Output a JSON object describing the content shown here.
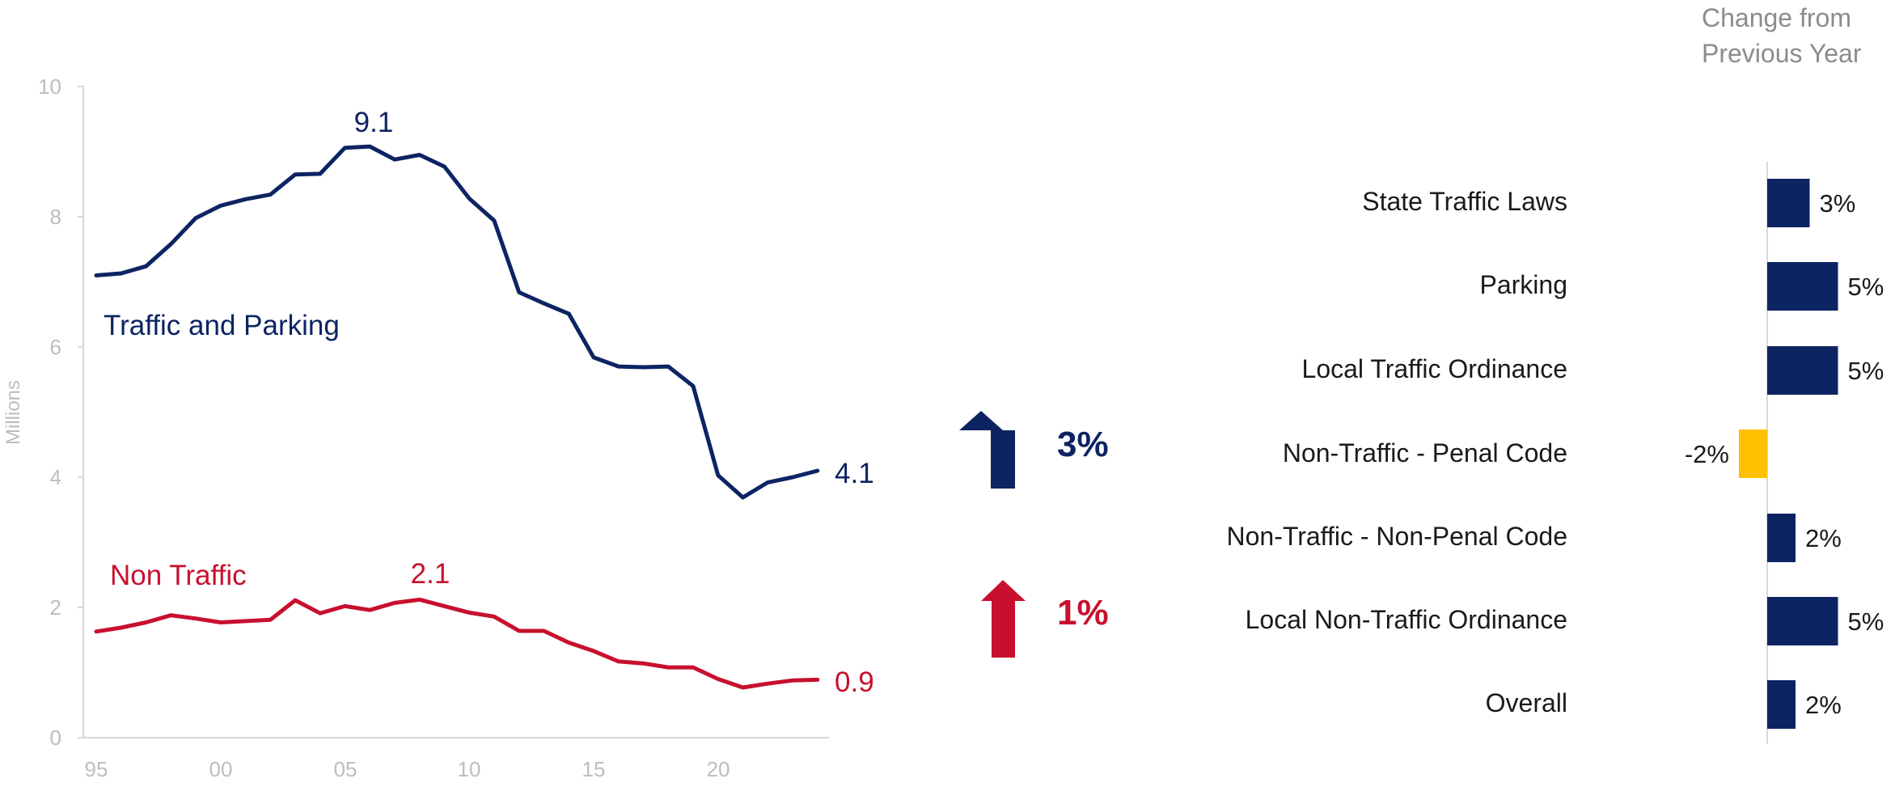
{
  "colors": {
    "navy": "#0d2463",
    "red": "#c8102e",
    "gold": "#ffc000",
    "axis": "#d9d9d9",
    "tick": "#bdbdbd"
  },
  "line_chart": {
    "ylabel": "Millions",
    "series_labels": {
      "traffic": "Traffic and Parking",
      "nontraffic": "Non Traffic"
    },
    "peak_labels": {
      "traffic": "9.1",
      "nontraffic": "2.1"
    },
    "end_labels": {
      "traffic": "4.1",
      "nontraffic": "0.9"
    },
    "yticks": [
      "0",
      "2",
      "4",
      "6",
      "8",
      "10"
    ],
    "xticks": [
      "95",
      "00",
      "05",
      "10",
      "15",
      "20"
    ]
  },
  "arrows": [
    {
      "direction": "up-arrow",
      "label": "3%",
      "color": "#0d2463"
    },
    {
      "direction": "up-arrow",
      "label": "1%",
      "color": "#c8102e"
    }
  ],
  "bar_chart": {
    "header_line1": "Change from",
    "header_line2": "Previous Year",
    "rows": [
      {
        "category": "State Traffic Laws",
        "value": 3,
        "label": "3%"
      },
      {
        "category": "Parking",
        "value": 5,
        "label": "5%"
      },
      {
        "category": "Local Traffic Ordinance",
        "value": 5,
        "label": "5%"
      },
      {
        "category": "Non-Traffic - Penal Code",
        "value": -2,
        "label": "-2%"
      },
      {
        "category": "Non-Traffic - Non-Penal Code",
        "value": 2,
        "label": "2%"
      },
      {
        "category": "Local Non-Traffic Ordinance",
        "value": 5,
        "label": "5%"
      },
      {
        "category": "Overall",
        "value": 2,
        "label": "2%"
      }
    ]
  },
  "chart_data": [
    {
      "type": "line",
      "title": "",
      "xlabel": "",
      "ylabel": "Millions",
      "ylim": [
        0,
        10
      ],
      "xlim": [
        1995,
        2025
      ],
      "grid": false,
      "x": [
        1995,
        1996,
        1997,
        1998,
        1999,
        2000,
        2001,
        2002,
        2003,
        2004,
        2005,
        2006,
        2007,
        2008,
        2009,
        2010,
        2011,
        2012,
        2013,
        2014,
        2015,
        2016,
        2017,
        2018,
        2019,
        2020,
        2021,
        2022,
        2023,
        2024
      ],
      "series": [
        {
          "name": "Traffic and Parking",
          "color": "#0d2463",
          "values": [
            7.1,
            7.13,
            7.24,
            7.58,
            7.98,
            8.17,
            8.27,
            8.34,
            8.65,
            8.66,
            9.06,
            9.08,
            8.88,
            8.95,
            8.77,
            8.28,
            7.94,
            6.84,
            6.67,
            6.51,
            5.84,
            5.7,
            5.69,
            5.7,
            5.4,
            4.03,
            3.69,
            3.92,
            4.0,
            4.1
          ]
        },
        {
          "name": "Non Traffic",
          "color": "#c8102e",
          "values": [
            1.63,
            1.69,
            1.77,
            1.88,
            1.83,
            1.77,
            1.79,
            1.81,
            2.11,
            1.91,
            2.02,
            1.96,
            2.07,
            2.12,
            2.02,
            1.92,
            1.86,
            1.64,
            1.64,
            1.46,
            1.33,
            1.17,
            1.14,
            1.08,
            1.08,
            0.9,
            0.77,
            0.83,
            0.88,
            0.89
          ]
        }
      ]
    },
    {
      "type": "bar",
      "orientation": "horizontal",
      "title": "Change from Previous Year",
      "categories": [
        "State Traffic Laws",
        "Parking",
        "Local Traffic Ordinance",
        "Non-Traffic - Penal Code",
        "Non-Traffic - Non-Penal Code",
        "Local Non-Traffic Ordinance",
        "Overall"
      ],
      "values": [
        3,
        5,
        5,
        -2,
        2,
        5,
        2
      ],
      "unit": "%"
    }
  ]
}
